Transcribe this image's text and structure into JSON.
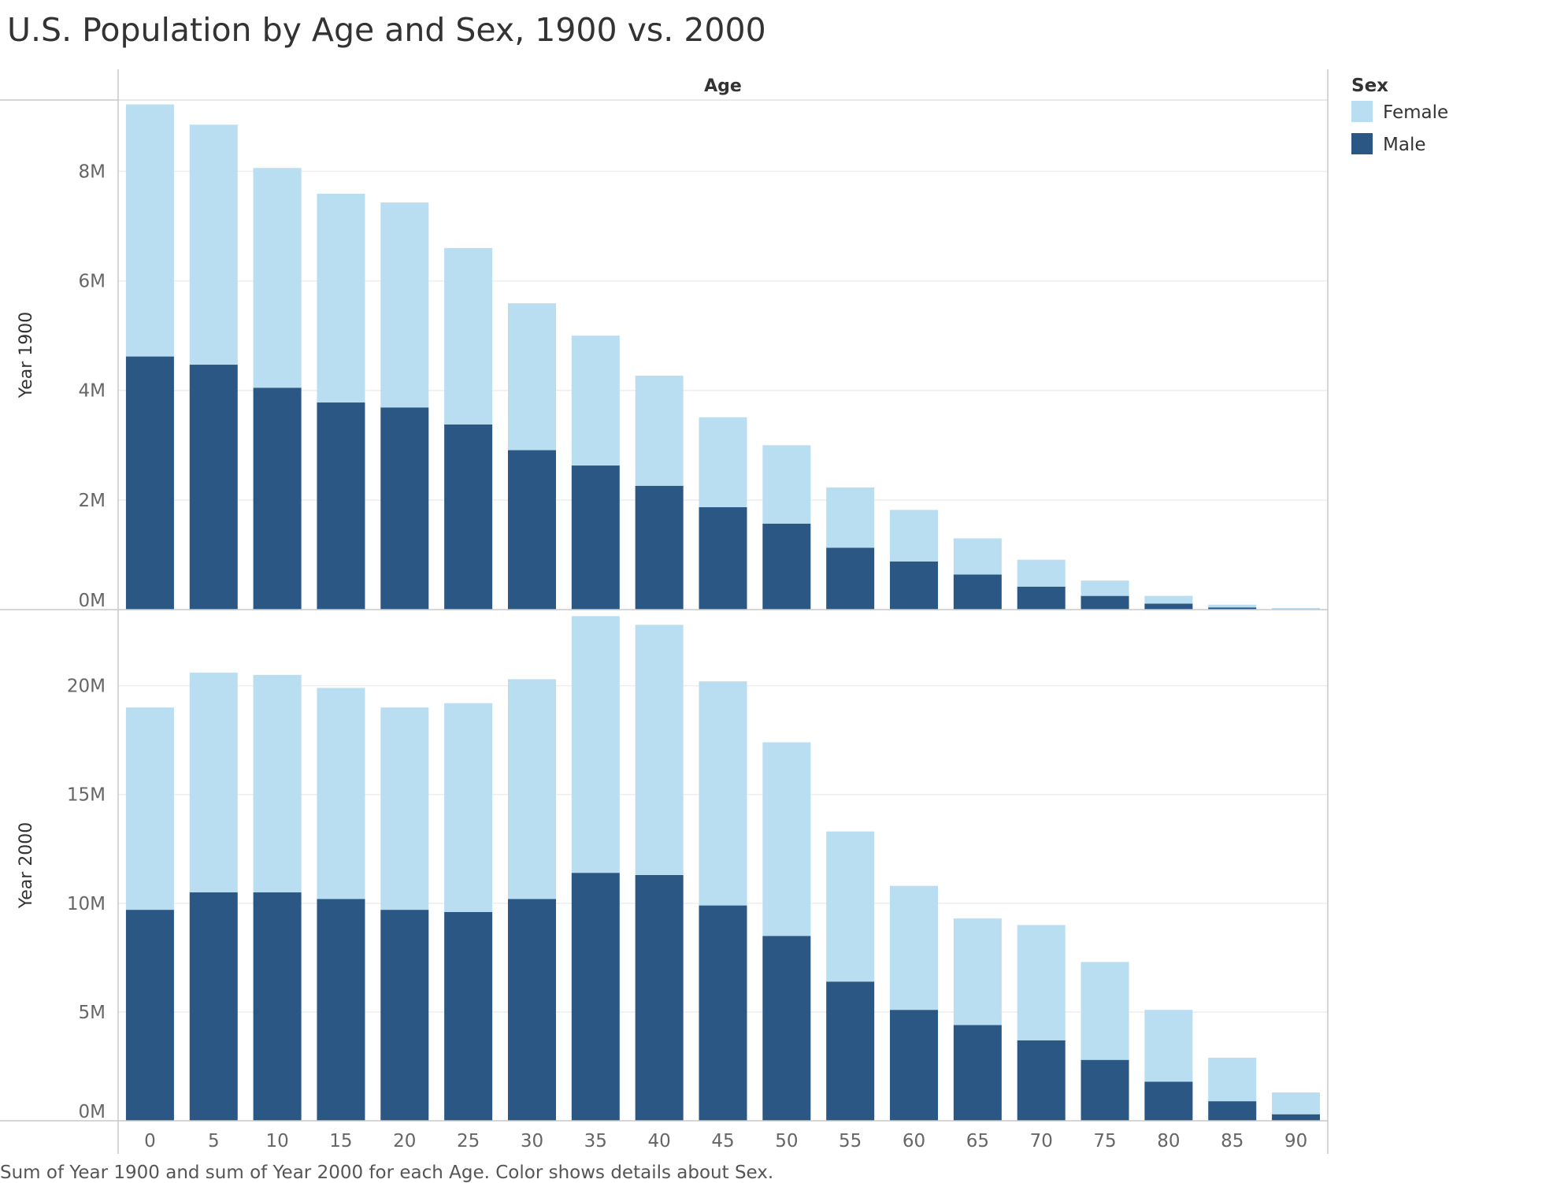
{
  "title": "U.S. Population by Age and Sex, 1900 vs. 2000",
  "footnote": "Sum of Year 1900 and sum of Year 2000 for each Age.  Color shows details about Sex.",
  "colors": {
    "female": "#b9ddf1",
    "male": "#2a5783",
    "grid": "#eeeeee",
    "axis": "#c8c8c8"
  },
  "chart_data": {
    "type": "bar",
    "stacked": true,
    "title": "U.S. Population by Age and Sex, 1900 vs. 2000",
    "column_header": "Age",
    "categories": [
      "0",
      "5",
      "10",
      "15",
      "20",
      "25",
      "30",
      "35",
      "40",
      "45",
      "50",
      "55",
      "60",
      "65",
      "70",
      "75",
      "80",
      "85",
      "90"
    ],
    "legend": {
      "title": "Sex",
      "entries": [
        "Female",
        "Male"
      ],
      "position": "right"
    },
    "grid": true,
    "panels": [
      {
        "ylabel": "Year 1900",
        "ylim": [
          0,
          9300000
        ],
        "yticks": [
          0,
          2000000,
          4000000,
          6000000,
          8000000
        ],
        "ytick_labels": [
          "0M",
          "2M",
          "4M",
          "6M",
          "8M"
        ],
        "series": [
          {
            "name": "Male",
            "values": [
              4620000,
              4470000,
              4050000,
              3780000,
              3690000,
              3380000,
              2910000,
              2630000,
              2260000,
              1870000,
              1570000,
              1130000,
              880000,
              640000,
              420000,
              250000,
              110000,
              40000,
              10000
            ]
          },
          {
            "name": "Female",
            "values": [
              4600000,
              4380000,
              4010000,
              3810000,
              3740000,
              3220000,
              2680000,
              2370000,
              2010000,
              1640000,
              1430000,
              1100000,
              940000,
              660000,
              490000,
              280000,
              140000,
              50000,
              20000
            ]
          }
        ]
      },
      {
        "ylabel": "Year 2000",
        "ylim": [
          0,
          23500000
        ],
        "yticks": [
          0,
          5000000,
          10000000,
          15000000,
          20000000
        ],
        "ytick_labels": [
          "0M",
          "5M",
          "10M",
          "15M",
          "20M"
        ],
        "series": [
          {
            "name": "Male",
            "values": [
              9700000,
              10500000,
              10500000,
              10200000,
              9700000,
              9600000,
              10200000,
              11400000,
              11300000,
              9900000,
              8500000,
              6400000,
              5100000,
              4400000,
              3700000,
              2800000,
              1800000,
              900000,
              300000
            ]
          },
          {
            "name": "Female",
            "values": [
              9300000,
              10100000,
              10000000,
              9700000,
              9300000,
              9600000,
              10100000,
              11800000,
              11500000,
              10300000,
              8900000,
              6900000,
              5700000,
              4900000,
              5300000,
              4500000,
              3300000,
              2000000,
              1000000
            ]
          }
        ]
      }
    ]
  }
}
